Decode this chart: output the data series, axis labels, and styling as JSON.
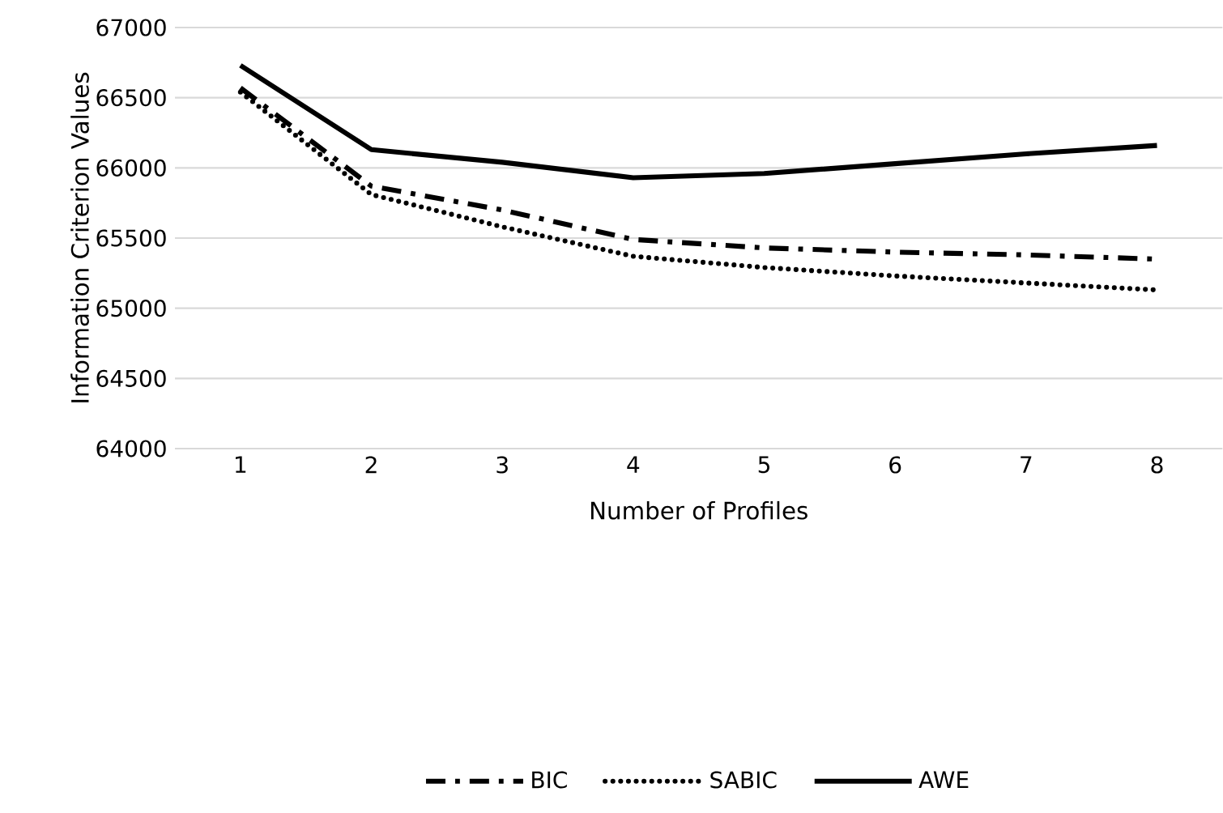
{
  "chart_data": {
    "type": "line",
    "xlabel": "Number of Profiles",
    "ylabel": "Information Criterion Values",
    "categories": [
      "1",
      "2",
      "3",
      "4",
      "5",
      "6",
      "7",
      "8"
    ],
    "series": [
      {
        "name": "BIC",
        "color": "#000000",
        "line_style": "dashed",
        "values": [
          66570,
          65870,
          65700,
          65490,
          65430,
          65400,
          65380,
          65350
        ]
      },
      {
        "name": "SABIC",
        "color": "#000000",
        "line_style": "dotted",
        "values": [
          66540,
          65810,
          65580,
          65370,
          65290,
          65230,
          65180,
          65130
        ]
      },
      {
        "name": "AWE",
        "color": "#000000",
        "line_style": "solid",
        "values": [
          66730,
          66130,
          66040,
          65930,
          65960,
          66030,
          66100,
          66160
        ]
      }
    ],
    "ylim": [
      64000,
      67000
    ],
    "yticks": [
      64000,
      64500,
      65000,
      65500,
      66000,
      66500,
      67000
    ],
    "grid": "y",
    "legend": "bottom"
  }
}
